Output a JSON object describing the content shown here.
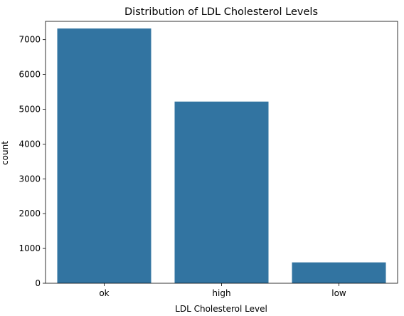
{
  "chart_data": {
    "type": "bar",
    "title": "Distribution of LDL Cholesterol Levels",
    "xlabel": "LDL Cholesterol Level",
    "ylabel": "count",
    "categories": [
      "ok",
      "high",
      "low"
    ],
    "values": [
      7320,
      5220,
      600
    ],
    "ylim": [
      0,
      7525
    ],
    "yticks": [
      0,
      1000,
      2000,
      3000,
      4000,
      5000,
      6000,
      7000
    ],
    "grid": false,
    "bar_color": "#3274a1"
  }
}
